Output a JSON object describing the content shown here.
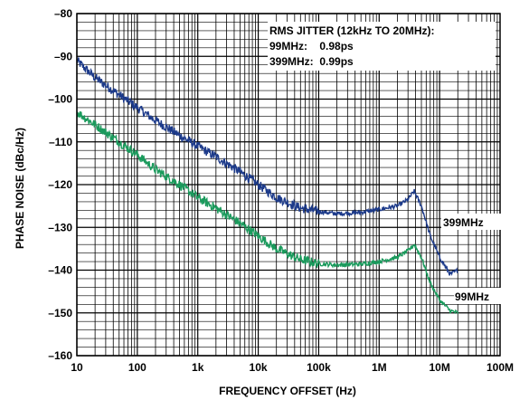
{
  "chart_data": {
    "type": "line",
    "title": "",
    "xlabel": "FREQUENCY OFFSET (Hz)",
    "ylabel": "PHASE NOISE (dBc/Hz)",
    "x_scale": "log",
    "xlim": [
      10,
      100000000
    ],
    "ylim": [
      -160,
      -80
    ],
    "grid": true,
    "x_ticks": [
      {
        "value": 10,
        "label": "10"
      },
      {
        "value": 100,
        "label": "100"
      },
      {
        "value": 1000,
        "label": "1k"
      },
      {
        "value": 10000,
        "label": "10k"
      },
      {
        "value": 100000,
        "label": "100k"
      },
      {
        "value": 1000000,
        "label": "1M"
      },
      {
        "value": 10000000,
        "label": "10M"
      },
      {
        "value": 100000000,
        "label": "100M"
      }
    ],
    "y_ticks": [
      {
        "value": -80,
        "label": "–80"
      },
      {
        "value": -90,
        "label": "–90"
      },
      {
        "value": -100,
        "label": "–100"
      },
      {
        "value": -110,
        "label": "–110"
      },
      {
        "value": -120,
        "label": "–120"
      },
      {
        "value": -130,
        "label": "–130"
      },
      {
        "value": -140,
        "label": "–140"
      },
      {
        "value": -150,
        "label": "–150"
      },
      {
        "value": -160,
        "label": "–160"
      }
    ],
    "annotations": [
      "RMS JITTER (12kHz TO 20MHz):",
      "99MHz:    0.98ps",
      "399MHz:  0.99ps"
    ],
    "series": [
      {
        "name": "399MHz",
        "color": "#1c3a8a",
        "x": [
          10,
          20,
          50,
          100,
          200,
          500,
          1000,
          2000,
          5000,
          10000,
          20000,
          50000,
          100000,
          200000,
          500000,
          1000000,
          2000000,
          3000000,
          3800000,
          5000000,
          7000000,
          10000000,
          15000000,
          20000000
        ],
        "y": [
          -91,
          -95,
          -99,
          -102,
          -105,
          -108.5,
          -111,
          -113.5,
          -117,
          -120,
          -123,
          -125.5,
          -126.3,
          -126.8,
          -126.5,
          -125.8,
          -125,
          -123.5,
          -121.5,
          -125,
          -132,
          -137,
          -141,
          -140
        ]
      },
      {
        "name": "99MHz",
        "color": "#1a9a5c",
        "x": [
          10,
          20,
          50,
          100,
          200,
          500,
          1000,
          2000,
          5000,
          10000,
          20000,
          50000,
          100000,
          200000,
          500000,
          1000000,
          2000000,
          3000000,
          3800000,
          5000000,
          7000000,
          10000000,
          15000000,
          20000000
        ],
        "y": [
          -103,
          -106,
          -110,
          -113,
          -116.5,
          -120,
          -123,
          -125.5,
          -129,
          -132,
          -135,
          -137.5,
          -138.5,
          -138.8,
          -138.6,
          -138,
          -137,
          -135.5,
          -134,
          -137,
          -143,
          -147,
          -149.5,
          -150
        ]
      }
    ]
  }
}
